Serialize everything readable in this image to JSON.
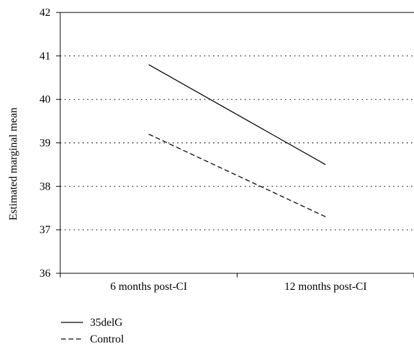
{
  "chart_data": {
    "type": "line",
    "title": "",
    "xlabel": "",
    "ylabel": "Estimated marginal mean",
    "categories": [
      "6 months post-CI",
      "12 months post-CI"
    ],
    "ylim": [
      36,
      42
    ],
    "yticks": [
      36,
      37,
      38,
      39,
      40,
      41,
      42
    ],
    "grid": true,
    "legend_position": "bottom-left",
    "series": [
      {
        "name": "35delG",
        "values": [
          40.8,
          38.5
        ],
        "line_style": "solid",
        "color": "#000000"
      },
      {
        "name": "Control",
        "values": [
          39.2,
          37.3
        ],
        "line_style": "dashed",
        "color": "#000000"
      }
    ]
  }
}
